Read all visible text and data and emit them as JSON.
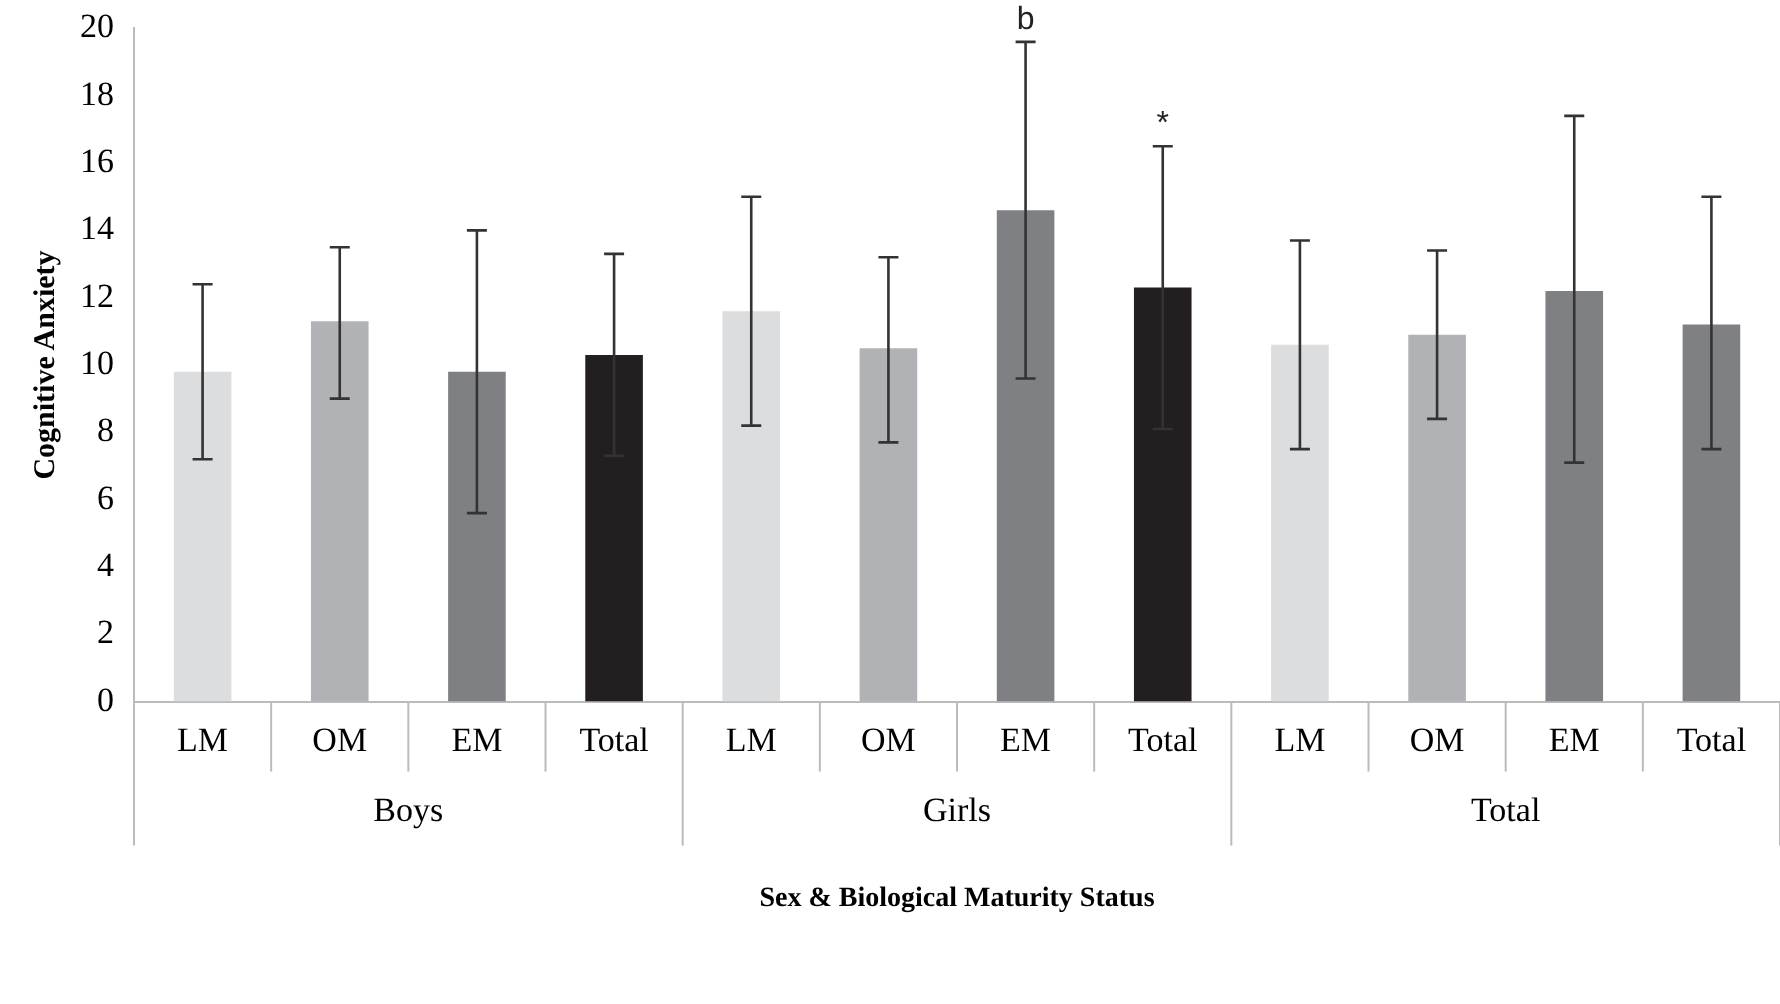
{
  "chart_data": {
    "type": "bar",
    "xlabel": "Sex & Biological Maturity Status",
    "ylabel": "Cognitive Anxiety",
    "categories": [
      "LM",
      "OM",
      "EM",
      "Total",
      "LM",
      "OM",
      "EM",
      "Total",
      "LM",
      "OM",
      "EM",
      "Total"
    ],
    "values": [
      9.8,
      11.3,
      9.8,
      10.3,
      11.6,
      10.5,
      14.6,
      12.3,
      10.6,
      10.9,
      12.2,
      11.2
    ],
    "colors": [
      "#dcdddf",
      "#b1b2b6",
      "#7f8084",
      "#231f20",
      "#dcdddf",
      "#b1b2b6",
      "#7f8084",
      "#231f20",
      "#dcdddf",
      "#b1b2b6",
      "#7f8084",
      "#7f8084"
    ],
    "errors": [
      [
        7.2,
        12.4
      ],
      [
        9.0,
        13.5
      ],
      [
        5.6,
        14.0
      ],
      [
        7.3,
        13.3
      ],
      [
        8.2,
        15.0
      ],
      [
        7.7,
        13.2
      ],
      [
        9.6,
        19.6
      ],
      [
        8.1,
        16.5
      ],
      [
        7.5,
        13.7
      ],
      [
        8.4,
        13.4
      ],
      [
        7.1,
        17.4
      ],
      [
        7.5,
        15.0
      ]
    ],
    "annotations": [
      "Boys",
      "Girls",
      "Total",
      "b",
      "*"
    ],
    "ylim": [
      0,
      20
    ],
    "yticks": [
      0,
      2,
      4,
      6,
      8,
      10,
      12,
      14,
      16,
      18,
      20
    ],
    "grid": false,
    "legend": false
  }
}
